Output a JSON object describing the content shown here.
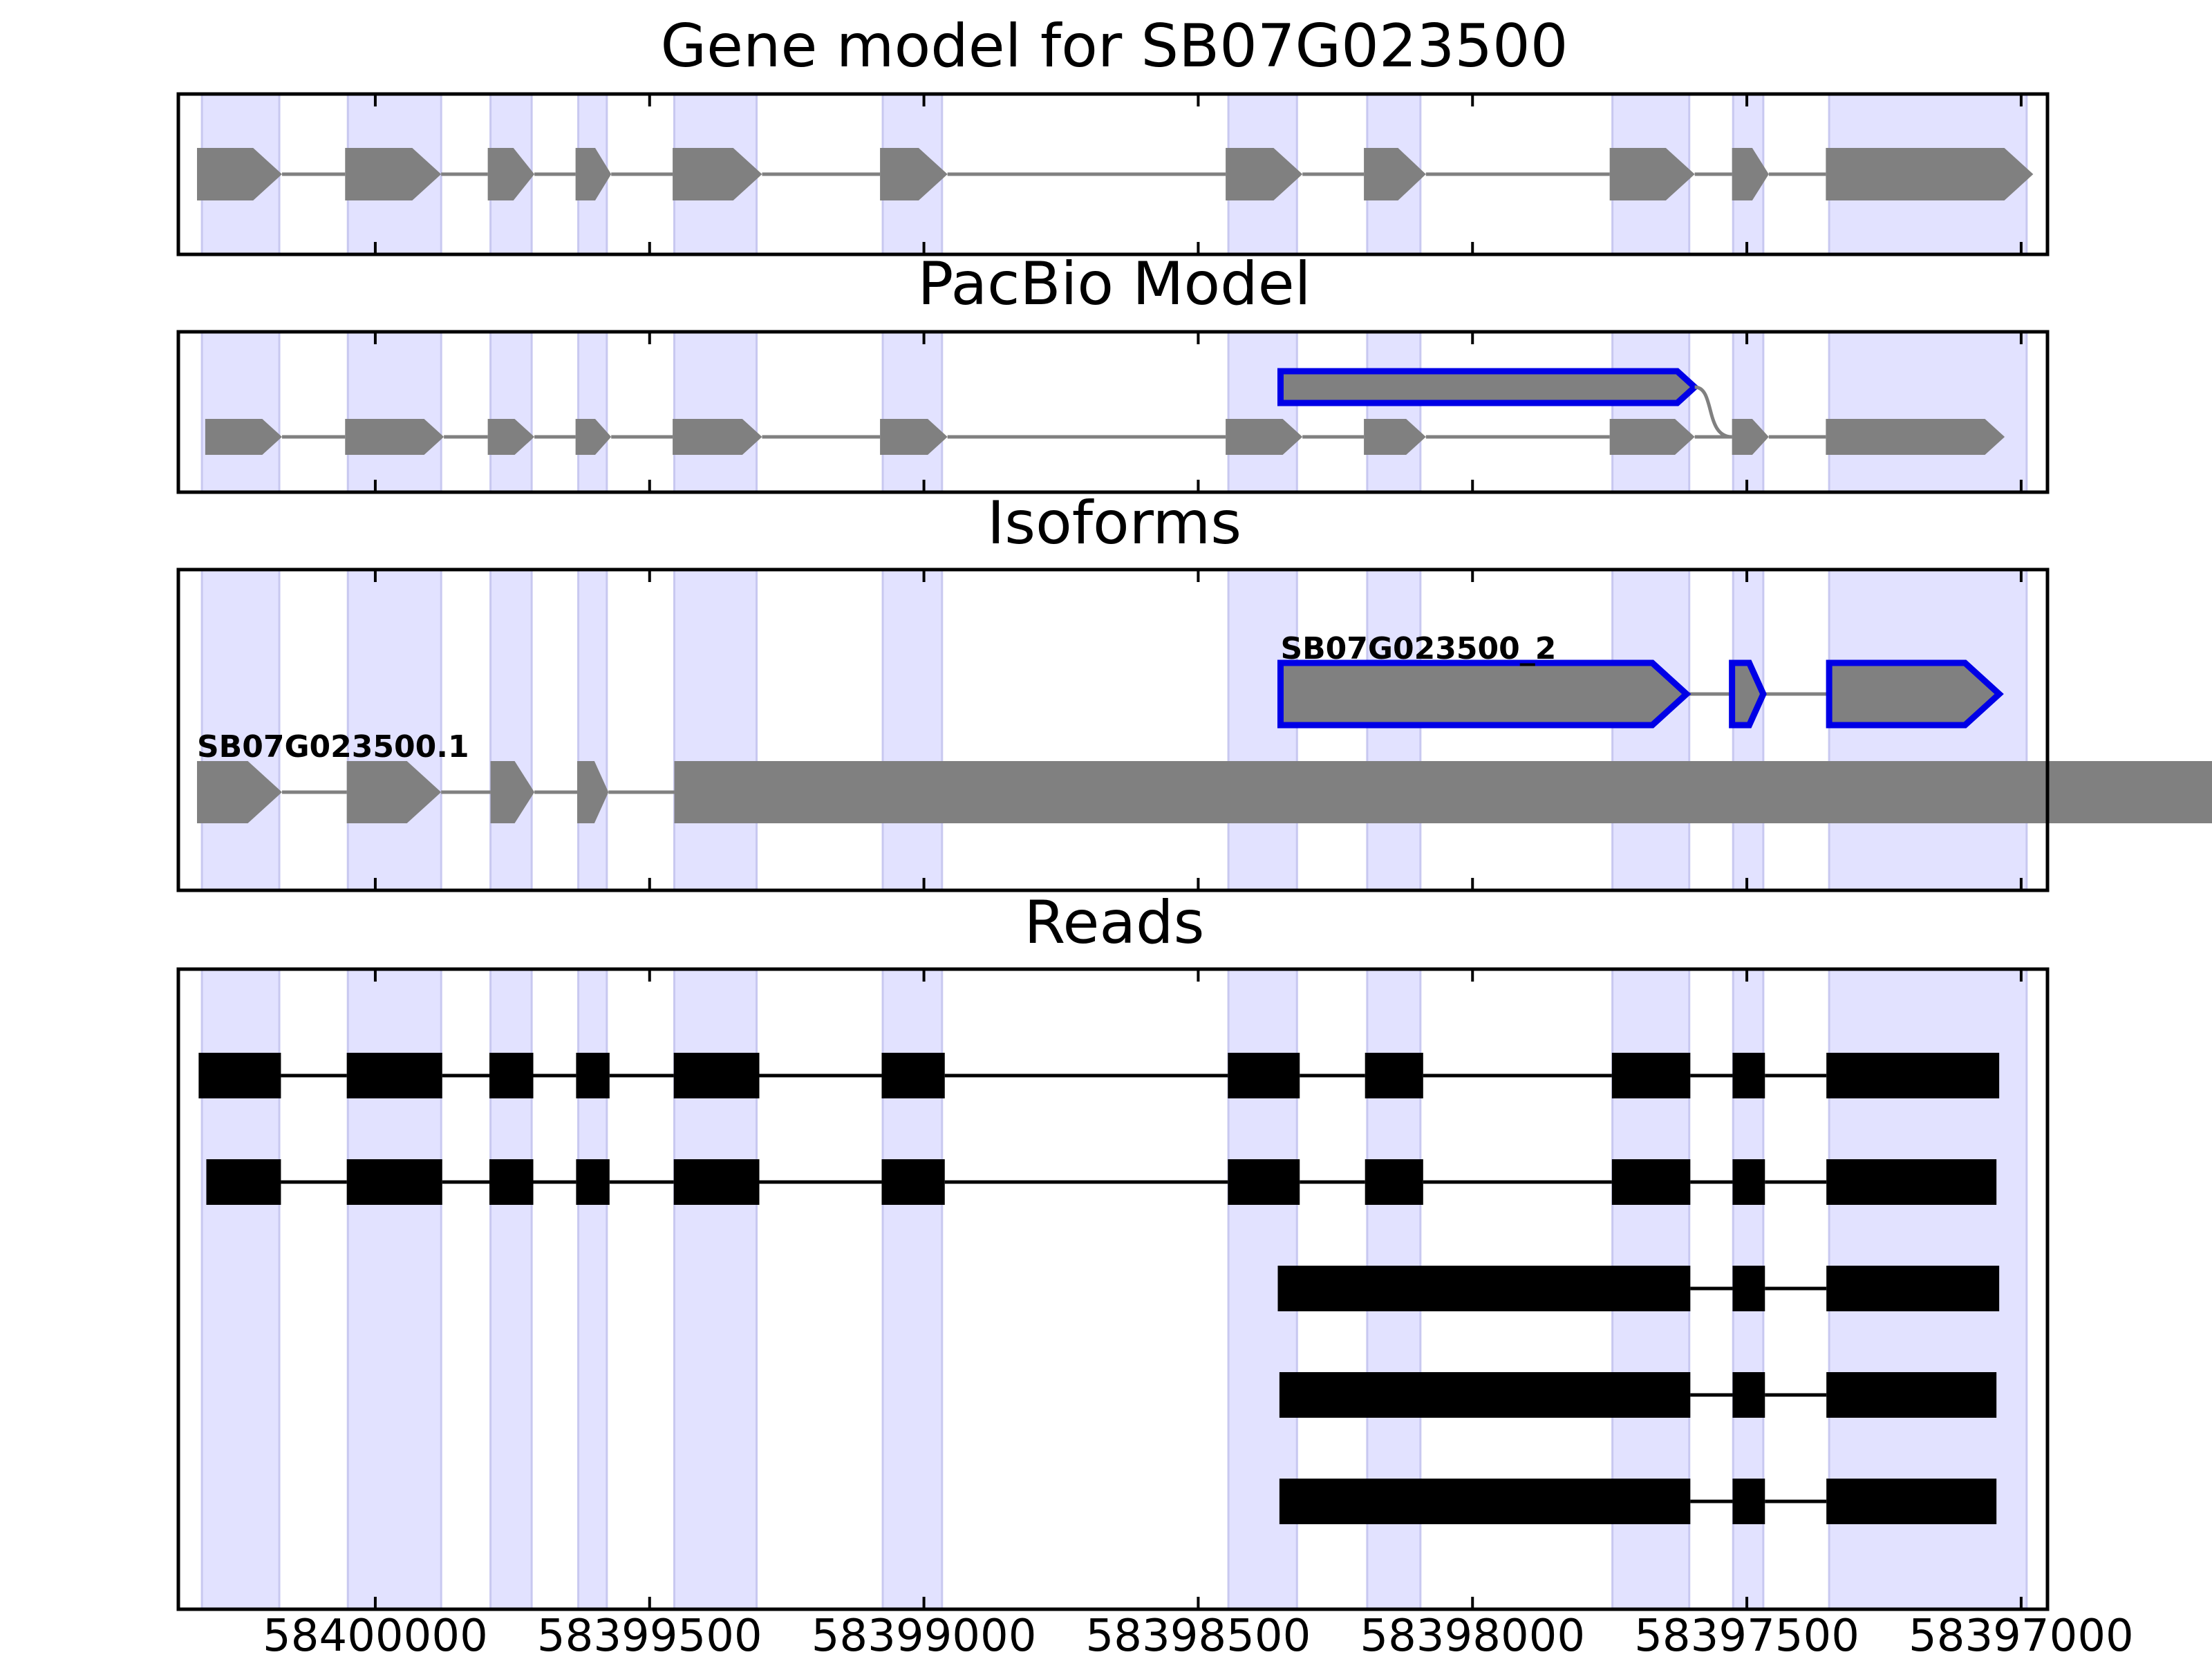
{
  "colors": {
    "exon_region": "#e2e2ff",
    "feature": "#808080",
    "highlight": "#0000e6",
    "read": "#000000",
    "frame": "#000000"
  },
  "axis": {
    "reversed": true,
    "domain": [
      58400359,
      58396952
    ],
    "ticks": [
      {
        "value": 58400000,
        "label": "58400000"
      },
      {
        "value": 58399500,
        "label": "58399500"
      },
      {
        "value": 58399000,
        "label": "58399000"
      },
      {
        "value": 58398500,
        "label": "58398500"
      },
      {
        "value": 58398000,
        "label": "58398000"
      },
      {
        "value": 58397500,
        "label": "58397500"
      },
      {
        "value": 58397000,
        "label": "58397000"
      }
    ]
  },
  "exon_regions": [
    [
      58400316,
      58400175
    ],
    [
      58400050,
      58399880
    ],
    [
      58399790,
      58399715
    ],
    [
      58399630,
      58399578
    ],
    [
      58399455,
      58399305
    ],
    [
      58399075,
      58398967
    ],
    [
      58398445,
      58398320
    ],
    [
      58398192,
      58398095
    ],
    [
      58397745,
      58397605
    ],
    [
      58397525,
      58397470
    ],
    [
      58397350,
      58396990
    ]
  ],
  "panels": {
    "gene_model": {
      "title": "Gene model for SB07G023500",
      "tracks": [
        {
          "highlight": false,
          "exons": [
            [
              58400325,
              58400170
            ],
            [
              58400055,
              58399880
            ],
            [
              58399795,
              58399710
            ],
            [
              58399635,
              58399570
            ],
            [
              58399458,
              58399295
            ],
            [
              58399080,
              58398957
            ],
            [
              58398450,
              58398310
            ],
            [
              58398198,
              58398085
            ],
            [
              58397750,
              58397595
            ],
            [
              58397527,
              58397460
            ],
            [
              58397356,
              58396978
            ]
          ]
        }
      ]
    },
    "pacbio_model": {
      "title": "PacBio Model",
      "tracks": [
        {
          "highlight": true,
          "exons": [
            [
              58398350,
              58397595
            ]
          ],
          "connect_down_to": [
            58397527,
            58397460
          ]
        },
        {
          "highlight": false,
          "exons": [
            [
              58400310,
              58400170
            ],
            [
              58400055,
              58399875
            ],
            [
              58399795,
              58399710
            ],
            [
              58399635,
              58399570
            ],
            [
              58399458,
              58399295
            ],
            [
              58399080,
              58398957
            ],
            [
              58398450,
              58398310
            ],
            [
              58398198,
              58398085
            ],
            [
              58397750,
              58397595
            ],
            [
              58397527,
              58397460
            ],
            [
              58397356,
              58397030
            ]
          ]
        }
      ]
    },
    "isoforms": {
      "title": "Isoforms",
      "tracks": [
        {
          "label": "SB07G023500_2",
          "highlight": true,
          "exons": [
            [
              58398350,
              58397610
            ],
            [
              58397527,
              58397470
            ],
            [
              58397350,
              58397040
            ]
          ]
        },
        {
          "label": "SB07G023500.1",
          "highlight": false,
          "exons": [
            [
              58400325,
              58400170
            ],
            [
              58400052,
              58399880
            ],
            [
              58399790,
              58399710
            ],
            [
              58399632,
              58399575
            ],
            [
              58399455,
              58299305
            ],
            [
              58399075,
              58398962
            ],
            [
              58398445,
              58398315
            ],
            [
              58398195,
              58398090
            ],
            [
              58397745,
              58397600
            ],
            [
              58397525,
              58397465
            ],
            [
              58397350,
              58396985
            ]
          ]
        }
      ]
    },
    "reads": {
      "title": "Reads",
      "tracks": [
        {
          "exons": [
            [
              58400322,
              58400172
            ],
            [
              58400052,
              58399878
            ],
            [
              58399792,
              58399712
            ],
            [
              58399634,
              58399573
            ],
            [
              58399456,
              58399300
            ],
            [
              58399077,
              58398962
            ],
            [
              58398446,
              58398315
            ],
            [
              58398196,
              58398090
            ],
            [
              58397746,
              58397603
            ],
            [
              58397526,
              58397467
            ],
            [
              58397355,
              58397040
            ]
          ]
        },
        {
          "exons": [
            [
              58400308,
              58400172
            ],
            [
              58400052,
              58399878
            ],
            [
              58399792,
              58399712
            ],
            [
              58399634,
              58399573
            ],
            [
              58399456,
              58399300
            ],
            [
              58399077,
              58398962
            ],
            [
              58398446,
              58398315
            ],
            [
              58398196,
              58398090
            ],
            [
              58397746,
              58397603
            ],
            [
              58397526,
              58397467
            ],
            [
              58397355,
              58397045
            ]
          ]
        },
        {
          "exons": [
            [
              58398355,
              58397603
            ],
            [
              58397526,
              58397467
            ],
            [
              58397355,
              58397040
            ]
          ]
        },
        {
          "exons": [
            [
              58398352,
              58397603
            ],
            [
              58397526,
              58397467
            ],
            [
              58397355,
              58397045
            ]
          ]
        },
        {
          "exons": [
            [
              58398352,
              58397603
            ],
            [
              58397526,
              58397467
            ],
            [
              58397355,
              58397045
            ]
          ]
        }
      ]
    }
  }
}
